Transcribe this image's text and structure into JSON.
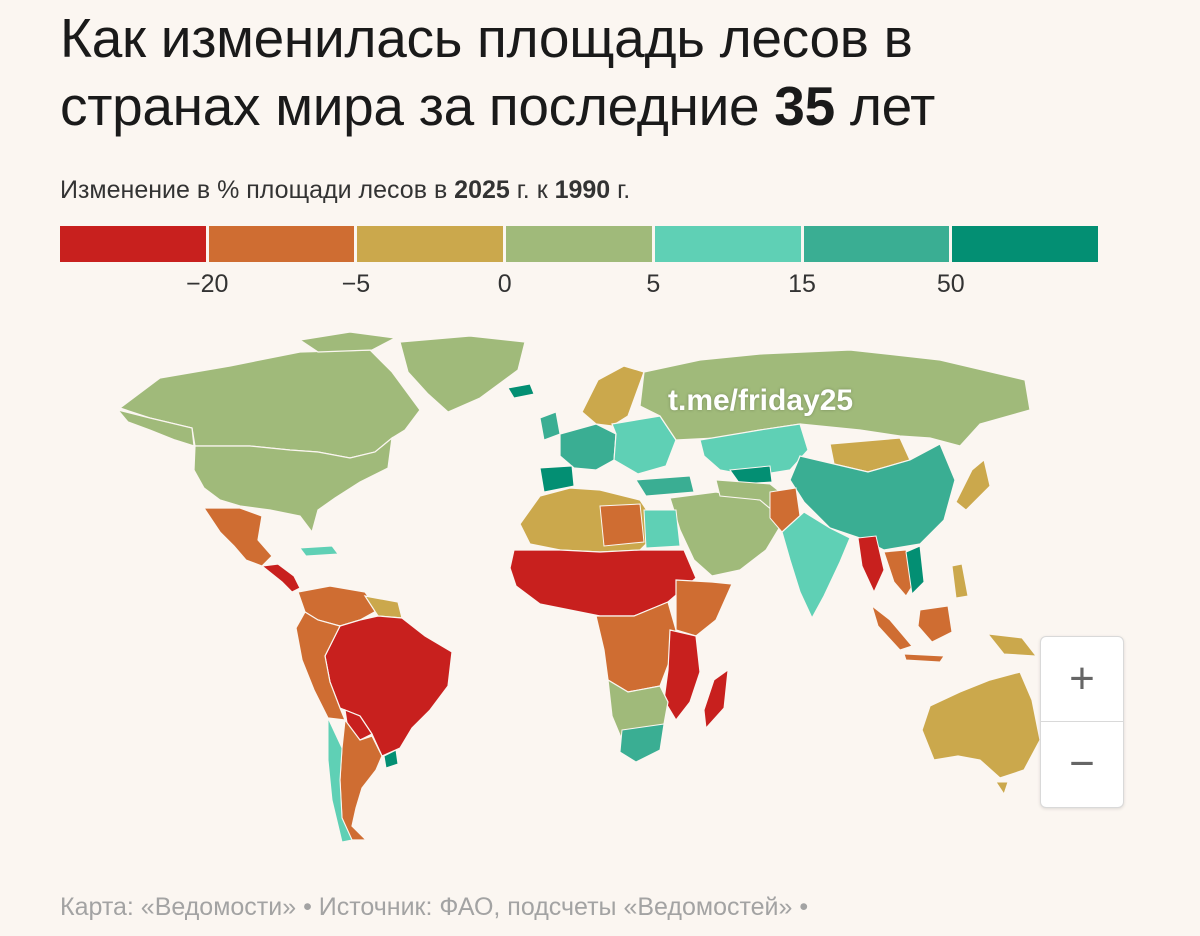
{
  "title": {
    "line1": "Как изменилась площадь лесов в",
    "line2_pre": "странах мира за последние ",
    "line2_bold": "35",
    "line2_post": " лет"
  },
  "subtitle": {
    "pre": "Изменение в % площади лесов в ",
    "year_new": "2025",
    "mid": " г. к ",
    "year_old": "1990",
    "post": " г."
  },
  "legend": {
    "colors": [
      "#c8201e",
      "#cf6d32",
      "#cba84c",
      "#a0ba7a",
      "#5fd0b5",
      "#3aae93",
      "#038f73"
    ],
    "ticks": [
      "−20",
      "−5",
      "0",
      "5",
      "15",
      "50"
    ]
  },
  "watermark": "t.me/friday25",
  "zoom": {
    "in_label": "+",
    "out_label": "−"
  },
  "source": "Карта: «Ведомости» • Источник: ФАО, подсчеты «Ведомостей» •"
}
